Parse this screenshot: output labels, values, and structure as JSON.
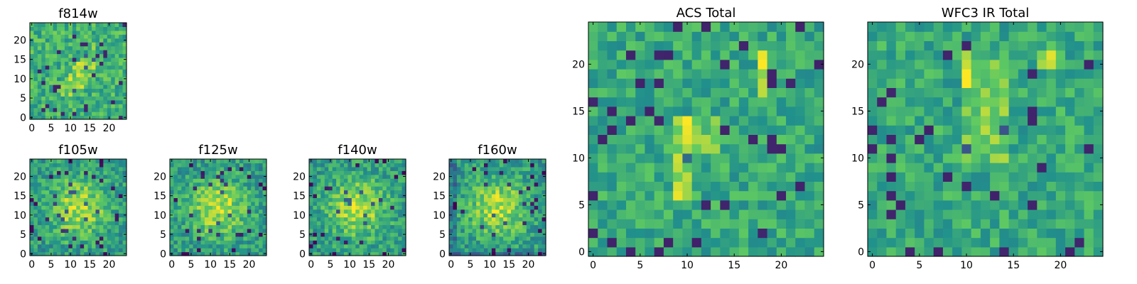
{
  "colormap": {
    "name": "viridis",
    "stops": [
      "#440154",
      "#3b528b",
      "#21918c",
      "#5ec962",
      "#fde725"
    ]
  },
  "chart_data": [
    {
      "type": "heatmap",
      "title": "f814w",
      "grid_size": 25,
      "xticks": [
        0,
        5,
        10,
        15,
        20
      ],
      "yticks": [
        0,
        5,
        10,
        15,
        20
      ],
      "xlim": [
        -0.5,
        24.5
      ],
      "ylim": [
        -0.5,
        24.5
      ],
      "structure": "noisy field with faint diagonal blob near x≈10-15, y≈8-20"
    },
    {
      "type": "heatmap",
      "title": "f105w",
      "grid_size": 25,
      "xticks": [
        0,
        5,
        10,
        15,
        20
      ],
      "yticks": [
        0,
        5,
        10,
        15,
        20
      ],
      "xlim": [
        -0.5,
        24.5
      ],
      "ylim": [
        -0.5,
        24.5
      ],
      "structure": "bright extended source near center (x≈12, y≈12)"
    },
    {
      "type": "heatmap",
      "title": "f125w",
      "grid_size": 25,
      "xticks": [
        0,
        5,
        10,
        15,
        20
      ],
      "yticks": [
        0,
        5,
        10,
        15,
        20
      ],
      "xlim": [
        -0.5,
        24.5
      ],
      "ylim": [
        -0.5,
        24.5
      ],
      "structure": "bright extended source near center"
    },
    {
      "type": "heatmap",
      "title": "f140w",
      "grid_size": 25,
      "xticks": [
        0,
        5,
        10,
        15,
        20
      ],
      "yticks": [
        0,
        5,
        10,
        15,
        20
      ],
      "xlim": [
        -0.5,
        24.5
      ],
      "ylim": [
        -0.5,
        24.5
      ],
      "structure": "bright extended source near center"
    },
    {
      "type": "heatmap",
      "title": "f160w",
      "grid_size": 25,
      "xticks": [
        0,
        5,
        10,
        15,
        20
      ],
      "yticks": [
        0,
        5,
        10,
        15,
        20
      ],
      "xlim": [
        -0.5,
        24.5
      ],
      "ylim": [
        -0.5,
        24.5
      ],
      "structure": "bright extended source near center, dark edges"
    },
    {
      "type": "heatmap",
      "title": "ACS Total",
      "grid_size": 25,
      "xticks": [
        0,
        5,
        10,
        15,
        20
      ],
      "yticks": [
        0,
        5,
        10,
        15,
        20
      ],
      "xlim": [
        -0.5,
        24.5
      ],
      "ylim": [
        -0.5,
        24.5
      ],
      "structure": "bright vertical streak near x≈9-10, bright column near x≈18, y≈18-21"
    },
    {
      "type": "heatmap",
      "title": "WFC3 IR Total",
      "grid_size": 25,
      "xticks": [
        0,
        5,
        10,
        15,
        20
      ],
      "yticks": [
        0,
        5,
        10,
        15,
        20
      ],
      "xlim": [
        -0.5,
        24.5
      ],
      "ylim": [
        -0.5,
        24.5
      ],
      "structure": "bright region near x≈10-14, y≈10-21"
    }
  ]
}
